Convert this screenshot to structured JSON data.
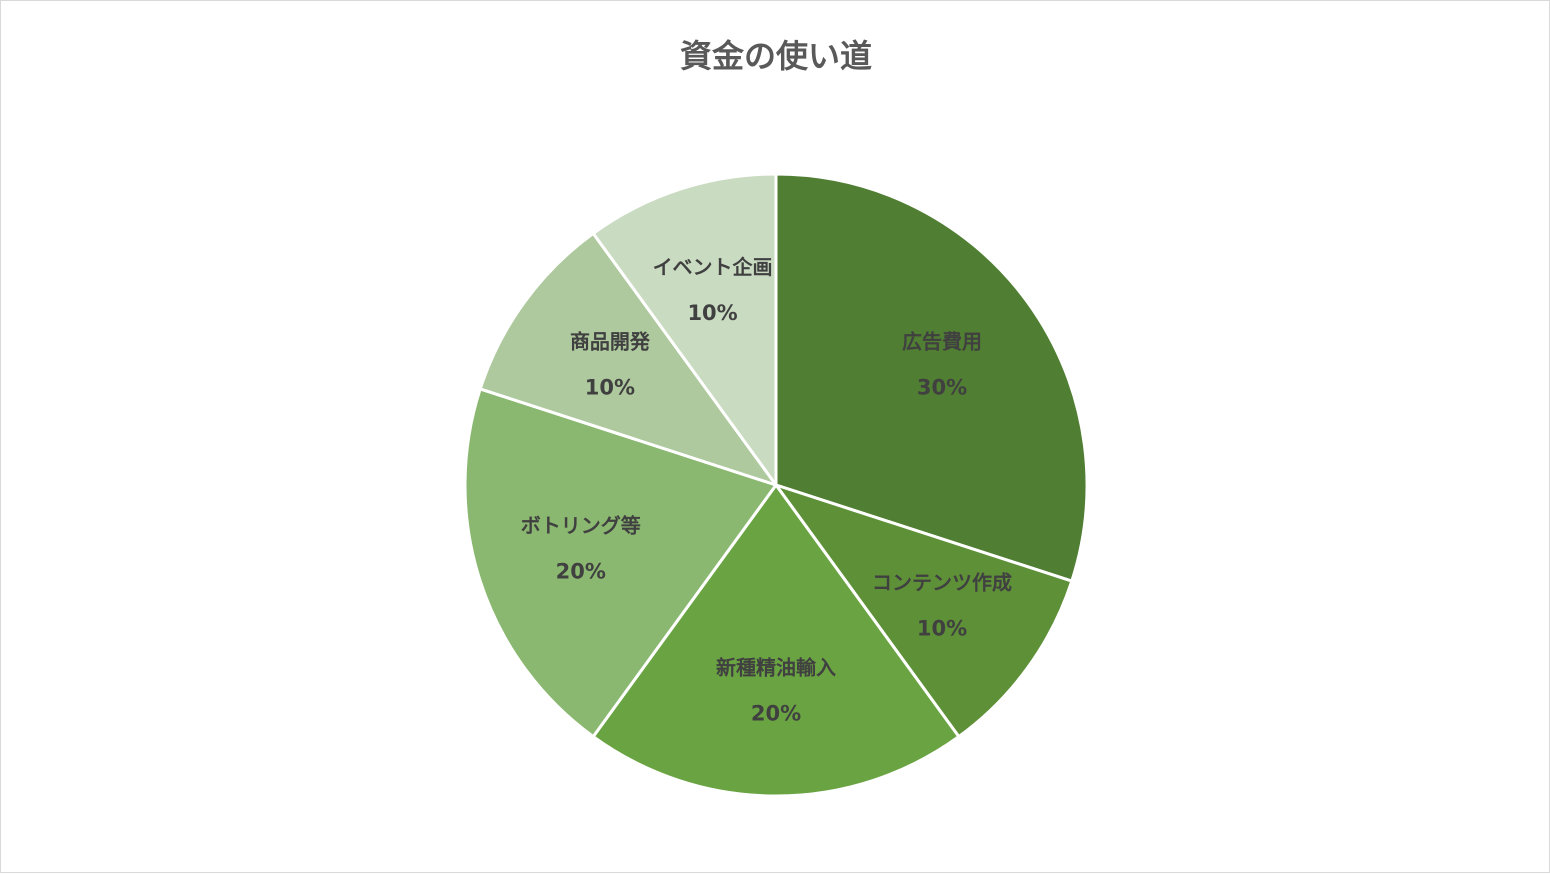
{
  "chart_data": {
    "type": "pie",
    "title": "資金の使い道",
    "series": [
      {
        "values": [
          30,
          10,
          20,
          20,
          10,
          10
        ]
      }
    ],
    "categories": [
      "広告費用",
      "コンテンツ作成",
      "新種精油輸入",
      "ボトリング等",
      "商品開発",
      "イベント企画"
    ],
    "value_labels": [
      "30%",
      "10%",
      "20%",
      "20%",
      "10%",
      "10%"
    ],
    "colors": [
      "#507e32",
      "#5e9038",
      "#6aa442",
      "#8ab870",
      "#adc99d",
      "#c9dbc1"
    ],
    "start_angle_deg": 0,
    "direction": "clockwise",
    "legend": "none"
  }
}
